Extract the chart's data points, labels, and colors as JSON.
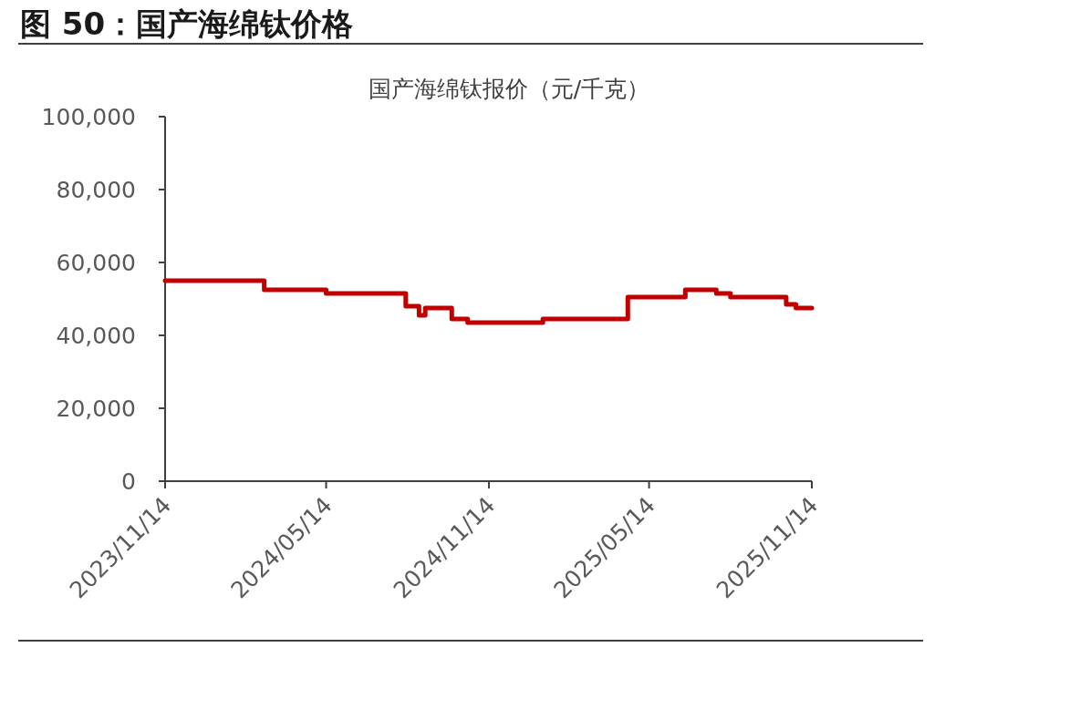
{
  "chart_data": {
    "type": "step",
    "title": "图 50：国产海绵钛价格",
    "subtitle": "国产海绵钛报价（元/千克）",
    "series": [
      {
        "color": "#c00000",
        "x": [
          "2023-11-14",
          "2024-03-05",
          "2024-05-14",
          "2024-08-12",
          "2024-08-27",
          "2024-09-03",
          "2024-10-03",
          "2024-10-21",
          "2025-01-14",
          "2025-04-20",
          "2025-06-24",
          "2025-07-29",
          "2025-08-14",
          "2025-10-16",
          "2025-10-27",
          "2025-11-14"
        ],
        "values": [
          55000,
          52500,
          51500,
          48000,
          45500,
          47500,
          44500,
          43500,
          44500,
          50500,
          52500,
          51500,
          50500,
          48500,
          47500,
          47500
        ]
      }
    ],
    "xlim": [
      "2023-11-14",
      "2025-11-14"
    ],
    "xticks": [
      {
        "value": "2023-11-14",
        "label": "2023/11/14"
      },
      {
        "value": "2024-05-14",
        "label": "2024/05/14"
      },
      {
        "value": "2024-11-14",
        "label": "2024/11/14"
      },
      {
        "value": "2025-05-14",
        "label": "2025/05/14"
      },
      {
        "value": "2025-11-14",
        "label": "2025/11/14"
      }
    ],
    "ylim": [
      0,
      100000
    ],
    "yticks": [
      0,
      {
        "value": 20000,
        "label": "20,000"
      },
      {
        "value": 40000,
        "label": "40,000"
      },
      {
        "value": 60000,
        "label": "60,000"
      },
      {
        "value": 80000,
        "label": "80,000"
      },
      {
        "value": 100000,
        "label": "100,000"
      }
    ],
    "grid": false
  }
}
